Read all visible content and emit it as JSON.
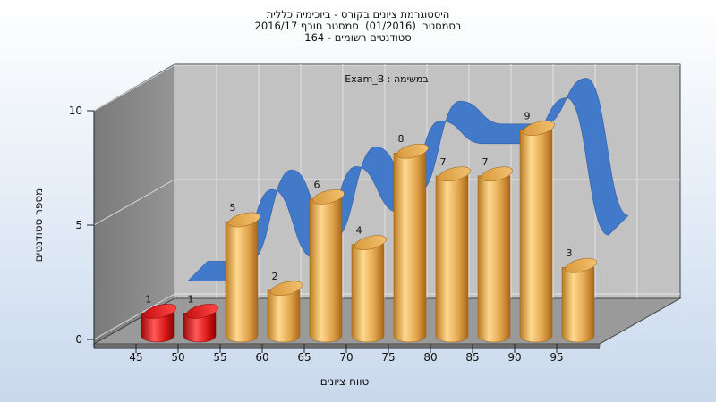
{
  "title_lines": [
    "היסטוגרמת ציונים בקורס - ביוכימיה כללית",
    "בסמסטר  (01/2016)  סמסטר חורף 2016/17",
    "164 - סטודנטים רשומים"
  ],
  "colors": {
    "bar": "#e2a54c",
    "bar_low": "#d91515",
    "ribbon": "#3c76c9",
    "back_wall": "#c2c2c2",
    "side_wall": "#878787",
    "floor": "#9a9a9a"
  },
  "chart_data": {
    "type": "bar",
    "subtitle": "Exam_B : במשימה",
    "xlabel": "טווח ציונים",
    "ylabel": "מספר סטודנטים",
    "categories": [
      "45",
      "50",
      "55",
      "60",
      "65",
      "70",
      "75",
      "80",
      "85",
      "90",
      "95"
    ],
    "values": [
      1,
      1,
      5,
      2,
      6,
      4,
      8,
      7,
      7,
      9,
      3
    ],
    "ylim": [
      0,
      10
    ],
    "yticks": [
      0,
      5,
      10
    ],
    "highlight_red_categories": [
      "45",
      "50"
    ],
    "series": [
      {
        "values": [
          1,
          1,
          5,
          2,
          6,
          4,
          8,
          7,
          7,
          9,
          3
        ]
      }
    ],
    "trend_ribbon": true,
    "grid": true,
    "legend": "none"
  }
}
